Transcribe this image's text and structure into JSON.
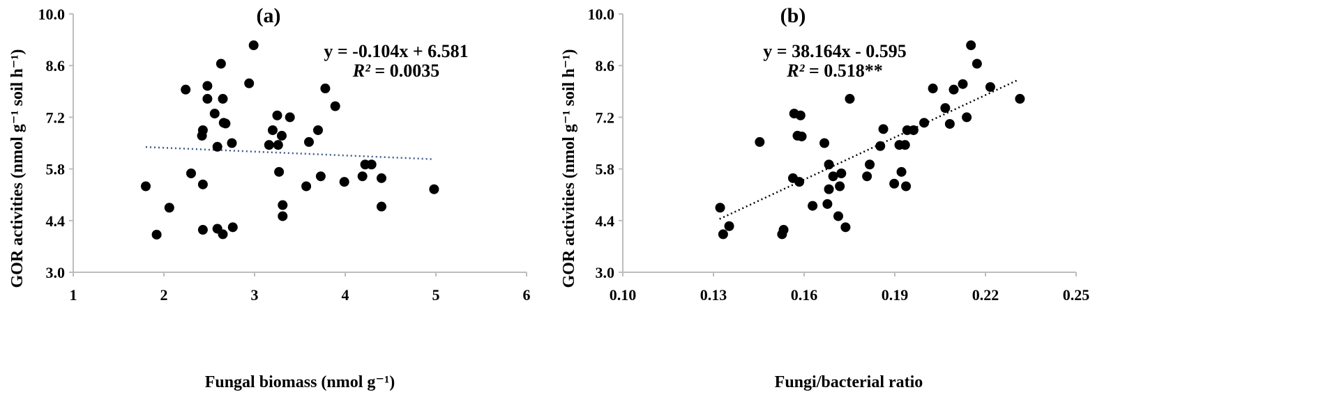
{
  "chart_data": [
    {
      "type": "scatter",
      "panel": "(a)",
      "xlabel": "Fungal biomass (nmol g⁻¹)",
      "ylabel": "GOR activities (nmol g⁻¹ soil h⁻¹)",
      "xlim": [
        1,
        6
      ],
      "ylim": [
        3.0,
        10.0
      ],
      "x_ticks": [
        "1",
        "2",
        "3",
        "4",
        "5",
        "6"
      ],
      "y_ticks": [
        "3.0",
        "4.4",
        "5.8",
        "7.2",
        "8.6",
        "10.0"
      ],
      "grid": false,
      "equation": "y = -0.104x + 6.581",
      "r2_label": "R²",
      "r2_value": " = 0.0035",
      "trendline": {
        "slope": -0.104,
        "intercept": 6.581,
        "x_range": [
          1.8,
          4.98
        ],
        "style": "dotted",
        "color": "#3b5a8a"
      },
      "points": [
        [
          1.8,
          5.33
        ],
        [
          1.92,
          4.02
        ],
        [
          2.06,
          4.75
        ],
        [
          2.24,
          7.95
        ],
        [
          2.3,
          5.68
        ],
        [
          2.43,
          5.38
        ],
        [
          2.42,
          6.7
        ],
        [
          2.43,
          6.85
        ],
        [
          2.43,
          4.15
        ],
        [
          2.48,
          8.05
        ],
        [
          2.48,
          7.7
        ],
        [
          2.56,
          7.3
        ],
        [
          2.59,
          6.4
        ],
        [
          2.59,
          4.18
        ],
        [
          2.63,
          8.65
        ],
        [
          2.65,
          7.7
        ],
        [
          2.66,
          7.05
        ],
        [
          2.68,
          7.03
        ],
        [
          2.65,
          4.03
        ],
        [
          2.75,
          6.5
        ],
        [
          2.76,
          4.22
        ],
        [
          2.94,
          8.12
        ],
        [
          2.99,
          9.15
        ],
        [
          3.16,
          6.45
        ],
        [
          3.2,
          6.85
        ],
        [
          3.25,
          7.25
        ],
        [
          3.26,
          6.45
        ],
        [
          3.27,
          5.72
        ],
        [
          3.3,
          6.7
        ],
        [
          3.31,
          4.82
        ],
        [
          3.31,
          4.52
        ],
        [
          3.39,
          7.2
        ],
        [
          3.57,
          5.33
        ],
        [
          3.6,
          6.53
        ],
        [
          3.7,
          6.85
        ],
        [
          3.73,
          5.6
        ],
        [
          3.78,
          7.98
        ],
        [
          3.89,
          7.5
        ],
        [
          3.99,
          5.45
        ],
        [
          4.19,
          5.6
        ],
        [
          4.22,
          5.92
        ],
        [
          4.29,
          5.92
        ],
        [
          4.4,
          5.55
        ],
        [
          4.4,
          4.78
        ],
        [
          4.98,
          5.25
        ]
      ]
    },
    {
      "type": "scatter",
      "panel": "(b)",
      "xlabel": "Fungi/bacterial ratio",
      "ylabel": "GOR activities (nmol g⁻¹ soil h⁻¹)",
      "xlim": [
        0.1,
        0.25
      ],
      "ylim": [
        3.0,
        10.0
      ],
      "x_ticks": [
        "0.10",
        "0.13",
        "0.16",
        "0.19",
        "0.22",
        "0.25"
      ],
      "y_ticks": [
        "3.0",
        "4.4",
        "5.8",
        "7.2",
        "8.6",
        "10.0"
      ],
      "grid": false,
      "equation": "y = 38.164x - 0.595",
      "r2_label": "R²",
      "r2_value": " = 0.518**",
      "trendline": {
        "slope": 38.164,
        "intercept": -0.595,
        "x_range": [
          0.132,
          0.231
        ],
        "style": "dotted",
        "color": "#000000"
      },
      "points": [
        [
          0.1322,
          4.75
        ],
        [
          0.1332,
          4.03
        ],
        [
          0.1352,
          4.25
        ],
        [
          0.1453,
          6.53
        ],
        [
          0.1527,
          4.03
        ],
        [
          0.1532,
          4.15
        ],
        [
          0.1563,
          5.55
        ],
        [
          0.1567,
          7.3
        ],
        [
          0.1578,
          6.7
        ],
        [
          0.1584,
          5.45
        ],
        [
          0.1588,
          7.25
        ],
        [
          0.1592,
          6.68
        ],
        [
          0.1628,
          4.8
        ],
        [
          0.1667,
          6.5
        ],
        [
          0.1677,
          4.85
        ],
        [
          0.1682,
          5.92
        ],
        [
          0.1682,
          5.25
        ],
        [
          0.1696,
          5.6
        ],
        [
          0.1713,
          4.52
        ],
        [
          0.1718,
          5.33
        ],
        [
          0.1723,
          5.68
        ],
        [
          0.1737,
          4.22
        ],
        [
          0.1751,
          7.7
        ],
        [
          0.1808,
          5.6
        ],
        [
          0.1817,
          5.92
        ],
        [
          0.1852,
          6.42
        ],
        [
          0.1862,
          6.88
        ],
        [
          0.1898,
          5.4
        ],
        [
          0.1915,
          6.45
        ],
        [
          0.1922,
          5.72
        ],
        [
          0.1934,
          6.45
        ],
        [
          0.1937,
          5.33
        ],
        [
          0.1941,
          6.85
        ],
        [
          0.1962,
          6.85
        ],
        [
          0.1997,
          7.05
        ],
        [
          0.2026,
          7.98
        ],
        [
          0.2067,
          7.45
        ],
        [
          0.2082,
          7.02
        ],
        [
          0.2095,
          7.95
        ],
        [
          0.2125,
          8.1
        ],
        [
          0.2138,
          7.2
        ],
        [
          0.2152,
          9.15
        ],
        [
          0.2172,
          8.65
        ],
        [
          0.2216,
          8.02
        ],
        [
          0.2314,
          7.7
        ]
      ]
    }
  ]
}
